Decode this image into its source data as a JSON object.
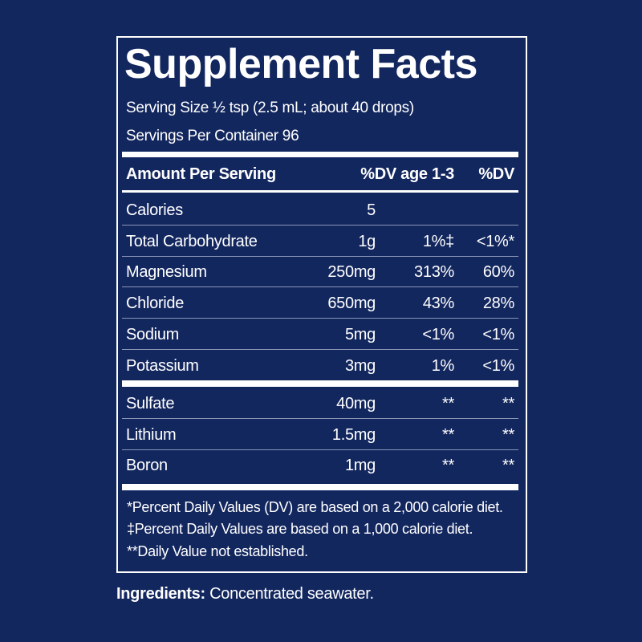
{
  "label": {
    "title": "Supplement Facts",
    "serving_size": "Serving Size ½ tsp (2.5 mL; about 40 drops)",
    "servings_per_container": "Servings Per Container 96",
    "header": {
      "name": "Amount Per Serving",
      "dv_child": "%DV age 1-3",
      "dv": "%DV"
    },
    "rows": [
      {
        "name": "Calories",
        "amount": "5"
      },
      {
        "name": "Total Carbohydrate",
        "amount": "1g",
        "dv_child": "1%‡",
        "dv": "<1%*"
      },
      {
        "name": "Magnesium",
        "amount": "250mg",
        "dv_child": "313%",
        "dv": "60%"
      },
      {
        "name": "Chloride",
        "amount": "650mg",
        "dv_child": "43%",
        "dv": "28%"
      },
      {
        "name": "Sodium",
        "amount": "5mg",
        "dv_child": "<1%",
        "dv": "<1%"
      },
      {
        "name": "Potassium",
        "amount": "3mg",
        "dv_child": "1%",
        "dv": "<1%"
      }
    ],
    "other_rows": [
      {
        "name": "Sulfate",
        "amount": "40mg",
        "dv_child": "**",
        "dv": "**"
      },
      {
        "name": "Lithium",
        "amount": "1.5mg",
        "dv_child": "**",
        "dv": "**"
      },
      {
        "name": "Boron",
        "amount": "1mg",
        "dv_child": "**",
        "dv": "**"
      }
    ],
    "footnotes": [
      "*Percent Daily Values (DV) are based on a 2,000 calorie diet.",
      "‡Percent Daily Values are based on a 1,000 calorie diet.",
      "**Daily Value not established."
    ]
  },
  "ingredients": {
    "label": "Ingredients:",
    "text": "Concentrated seawater."
  }
}
